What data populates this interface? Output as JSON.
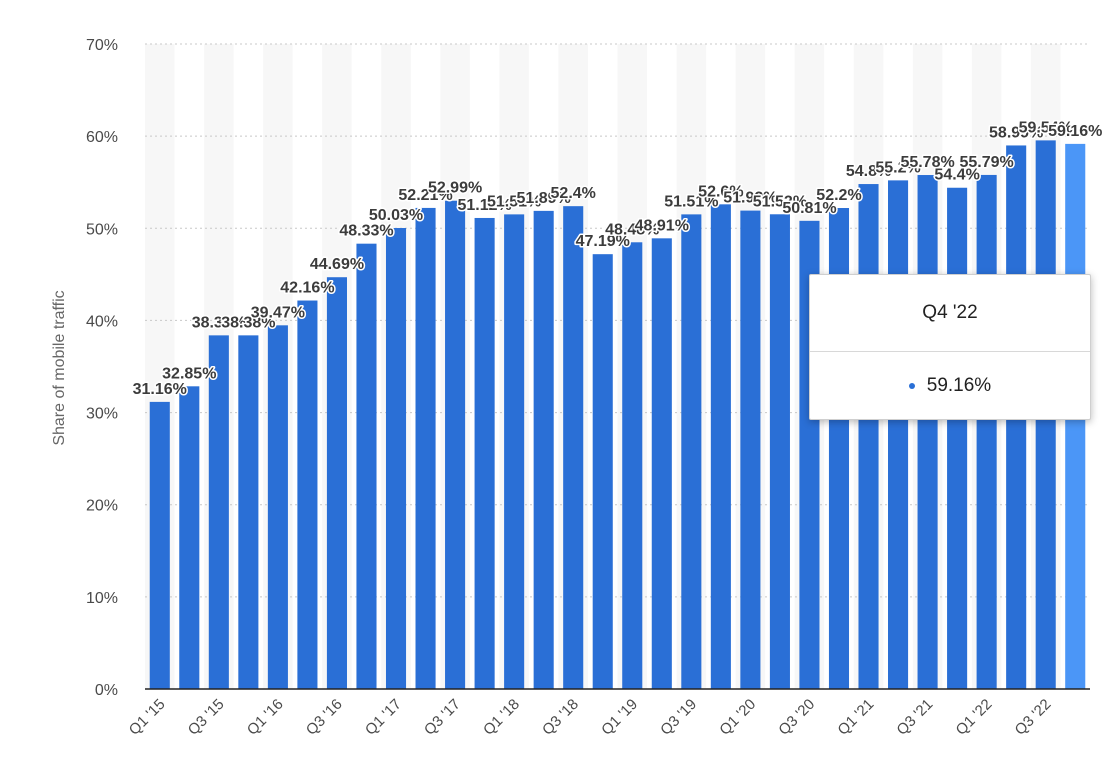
{
  "chart_data": {
    "type": "bar",
    "ylabel": "Share of mobile traffic",
    "ylim": [
      0,
      70
    ],
    "yticks": [
      "0%",
      "10%",
      "20%",
      "30%",
      "40%",
      "50%",
      "60%",
      "70%"
    ],
    "grid": true,
    "categories": [
      "Q1 '15",
      "Q2 '15",
      "Q3 '15",
      "Q4 '15",
      "Q1 '16",
      "Q2 '16",
      "Q3 '16",
      "Q4 '16",
      "Q1 '17",
      "Q2 '17",
      "Q3 '17",
      "Q4 '17",
      "Q1 '18",
      "Q2 '18",
      "Q3 '18",
      "Q4 '18",
      "Q1 '19",
      "Q2 '19",
      "Q3 '19",
      "Q4 '19",
      "Q1 '20",
      "Q2 '20",
      "Q3 '20",
      "Q4 '20",
      "Q1 '21",
      "Q2 '21",
      "Q3 '21",
      "Q4 '21",
      "Q1 '22",
      "Q2 '22",
      "Q3 '22",
      "Q4 '22"
    ],
    "xtick_labels": [
      "Q1 '15",
      "Q3 '15",
      "Q1 '16",
      "Q3 '16",
      "Q1 '17",
      "Q3 '17",
      "Q1 '18",
      "Q3 '18",
      "Q1 '19",
      "Q3 '19",
      "Q1 '20",
      "Q3 '20",
      "Q1 '21",
      "Q3 '21",
      "Q1 '22",
      "Q3 '22"
    ],
    "values": [
      31.16,
      32.85,
      38.38,
      38.38,
      39.47,
      42.16,
      44.69,
      48.33,
      50.03,
      52.21,
      52.99,
      51.12,
      51.51,
      51.89,
      52.4,
      47.19,
      48.48,
      48.91,
      51.51,
      52.6,
      51.92,
      51.52,
      50.81,
      52.2,
      54.8,
      55.2,
      55.78,
      54.4,
      55.79,
      58.99,
      59.54,
      59.16
    ],
    "value_labels": [
      "31.16%",
      "32.85%",
      "38.38%",
      "38.38%",
      "39.47%",
      "42.16%",
      "44.69%",
      "48.33%",
      "50.03%",
      "52.21%",
      "52.99%",
      "51.12%",
      "51.51%",
      "51.89%",
      "52.4%",
      "47.19%",
      "48.48%",
      "48.91%",
      "51.51%",
      "52.6%",
      "51.92%",
      "51.52%",
      "50.81%",
      "52.2%",
      "54.8%",
      "55.2%",
      "55.78%",
      "54.4%",
      "55.79%",
      "58.99%",
      "59.54%",
      "59.16%"
    ],
    "highlighted_index": 31
  },
  "colors": {
    "bar": "#2a6fd6",
    "bar_highlight": "#4b96f7",
    "grid": "#c8c8c8",
    "axis": "#222222"
  },
  "tooltip": {
    "title": "Q4 '22",
    "value": "59.16%"
  }
}
